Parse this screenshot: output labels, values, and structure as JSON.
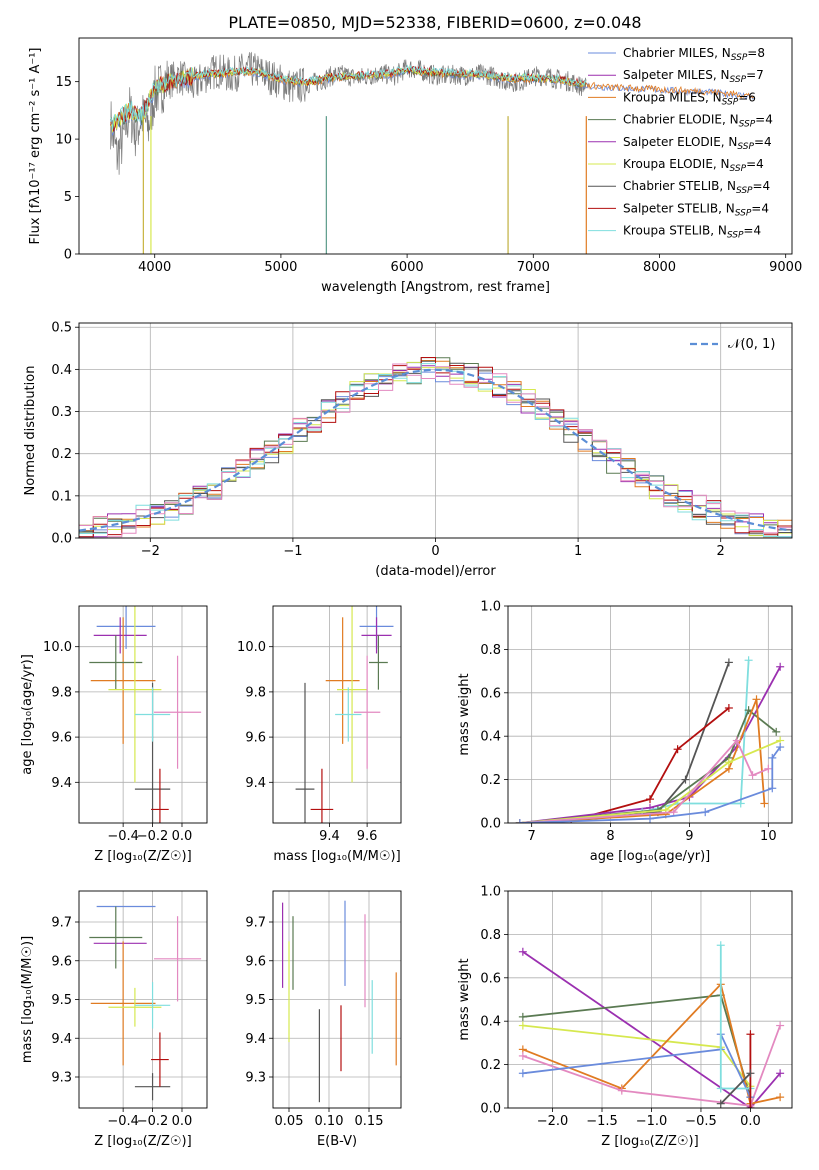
{
  "title": "PLATE=0850, MJD=52338, FIBERID=0600, z=0.048",
  "colors": [
    "#6a8bdc",
    "#9b2fae",
    "#e07b22",
    "#5a7a52",
    "#9b30b0",
    "#d6e84f",
    "#555555",
    "#b30f0f",
    "#7fdede",
    "#e389c0"
  ],
  "chart_data": [
    {
      "id": "spectrum",
      "type": "line",
      "title": "PLATE=0850, MJD=52338, FIBERID=0600, z=0.048",
      "xlabel": "wavelength [Angstrom, rest frame]",
      "ylabel": "Flux [fλ10⁻¹⁷ erg cm⁻² s⁻¹ A⁻¹]",
      "xlim": [
        3400,
        9050
      ],
      "ylim": [
        0,
        18.8
      ],
      "xticks": [
        "4000",
        "5000",
        "6000",
        "7000",
        "8000",
        "9000"
      ],
      "yticks": [
        "0",
        "5",
        "10",
        "15"
      ],
      "legend": [
        {
          "label": "Chabrier MILES, N",
          "sub": "SSP",
          "rest": "=8",
          "color": "#6a8bdc"
        },
        {
          "label": "Salpeter MILES, N",
          "sub": "SSP",
          "rest": "=7",
          "color": "#9b2fae"
        },
        {
          "label": "Kroupa MILES, N",
          "sub": "SSP",
          "rest": "=6",
          "color": "#e07b22"
        },
        {
          "label": "Chabrier ELODIE, N",
          "sub": "SSP",
          "rest": "=4",
          "color": "#5a7a52"
        },
        {
          "label": "Salpeter ELODIE, N",
          "sub": "SSP",
          "rest": "=4",
          "color": "#9b30b0"
        },
        {
          "label": "Kroupa ELODIE, N",
          "sub": "SSP",
          "rest": "=4",
          "color": "#d6e84f"
        },
        {
          "label": "Chabrier STELIB, N",
          "sub": "SSP",
          "rest": "=4",
          "color": "#555555"
        },
        {
          "label": "Salpeter STELIB, N",
          "sub": "SSP",
          "rest": "=4",
          "color": "#b30f0f"
        },
        {
          "label": "Kroupa STELIB, N",
          "sub": "SSP",
          "rest": "=4",
          "color": "#7fdede"
        }
      ],
      "data_spectrum": {
        "wavelength": [
          3650,
          3700,
          3750,
          3800,
          3850,
          3900,
          3950,
          4000,
          4100,
          4200,
          4300,
          4400,
          4500,
          4600,
          4700,
          4800,
          4900,
          5000,
          5100,
          5200,
          5300,
          5400,
          5500,
          5600,
          5700,
          5800,
          5900,
          6000,
          6100,
          6200,
          6300,
          6400,
          6500,
          6600,
          6700,
          6800,
          6900,
          7000,
          7100,
          7200,
          7300,
          7400
        ],
        "flux": [
          11.5,
          8.5,
          10.0,
          12.5,
          10.5,
          12.0,
          11.0,
          14.0,
          15.0,
          15.5,
          14.5,
          15.5,
          16.0,
          15.5,
          16.0,
          16.0,
          15.5,
          15.0,
          14.5,
          14.8,
          15.0,
          15.5,
          15.6,
          15.3,
          15.5,
          15.7,
          15.5,
          16.2,
          16.0,
          15.6,
          15.5,
          15.6,
          15.5,
          15.7,
          15.4,
          15.0,
          15.0,
          15.5,
          15.5,
          15.2,
          15.0,
          14.5
        ]
      },
      "model_flux": {
        "wavelength": [
          3650,
          3700,
          3800,
          3900,
          4000,
          4200,
          4400,
          4600,
          4800,
          5000,
          5200,
          5400,
          5600,
          5800,
          6000,
          6200,
          6400,
          6600,
          6800,
          7000,
          7200,
          7400,
          7600,
          7800,
          8000,
          8200,
          8400,
          8600,
          8750
        ],
        "flux": [
          11.0,
          11.5,
          12.5,
          12.0,
          14.5,
          15.3,
          15.6,
          15.8,
          15.9,
          15.2,
          14.9,
          15.4,
          15.5,
          15.6,
          16.0,
          15.8,
          15.7,
          15.6,
          15.3,
          15.3,
          15.2,
          14.8,
          14.6,
          14.5,
          14.4,
          14.3,
          14.2,
          14.0,
          13.8
        ]
      }
    },
    {
      "id": "residuals",
      "type": "line",
      "xlabel": "(data-model)/error",
      "ylabel": "Normed distribution",
      "xlim": [
        -2.5,
        2.5
      ],
      "ylim": [
        0,
        0.51
      ],
      "xticks": [
        "−2",
        "−1",
        "0",
        "1",
        "2"
      ],
      "yticks": [
        "0.0",
        "0.1",
        "0.2",
        "0.3",
        "0.4",
        "0.5"
      ],
      "legend": [
        {
          "label": "𝒩(0, 1)",
          "color": "#5b8ed6"
        }
      ],
      "bin_width": 0.1
    },
    {
      "id": "age-vs-Z",
      "type": "scatter",
      "xlabel": "Z [log₁₀(Z/Z☉)]",
      "ylabel": "age  [log₁₀(age/yr)]",
      "xlim": [
        -0.7,
        0.17
      ],
      "ylim": [
        9.22,
        10.18
      ],
      "xticks": [
        "−0.4",
        "−0.2",
        "0.0"
      ],
      "yticks": [
        "9.4",
        "9.6",
        "9.8",
        "10.0"
      ],
      "points": [
        {
          "x": -0.38,
          "xerr": 0.2,
          "y": 10.09,
          "yerr": 0.1,
          "color": "#6a8bdc"
        },
        {
          "x": -0.42,
          "xerr": 0.18,
          "y": 10.05,
          "yerr": 0.08,
          "color": "#9b30b0"
        },
        {
          "x": -0.4,
          "xerr": 0.22,
          "y": 9.85,
          "yerr": 0.28,
          "color": "#e07b22"
        },
        {
          "x": -0.45,
          "xerr": 0.18,
          "y": 9.93,
          "yerr": 0.12,
          "color": "#5a7a52"
        },
        {
          "x": -0.32,
          "xerr": 0.18,
          "y": 9.81,
          "yerr": 0.41,
          "color": "#d6e84f"
        },
        {
          "x": -0.2,
          "xerr": 0.12,
          "y": 9.37,
          "yerr": 0.47,
          "color": "#555555"
        },
        {
          "x": -0.15,
          "xerr": 0.06,
          "y": 9.28,
          "yerr": 0.18,
          "color": "#b30f0f"
        },
        {
          "x": -0.2,
          "xerr": 0.12,
          "y": 9.7,
          "yerr": 0.12,
          "color": "#7fdede"
        },
        {
          "x": -0.03,
          "xerr": 0.16,
          "y": 9.71,
          "yerr": 0.25,
          "color": "#e389c0"
        }
      ]
    },
    {
      "id": "age-vs-mass",
      "type": "scatter",
      "xlabel": "mass [log₁₀(M/M☉)]",
      "ylabel": "",
      "xlim": [
        9.1,
        9.78
      ],
      "ylim": [
        9.22,
        10.18
      ],
      "xticks": [
        "9.4",
        "9.6"
      ],
      "yticks": [
        "9.4",
        "9.6",
        "9.8",
        "10.0"
      ],
      "points": [
        {
          "x": 9.65,
          "xerr": 0.09,
          "y": 10.09,
          "yerr": 0.1,
          "color": "#6a8bdc"
        },
        {
          "x": 9.65,
          "xerr": 0.08,
          "y": 10.05,
          "yerr": 0.08,
          "color": "#9b30b0"
        },
        {
          "x": 9.47,
          "xerr": 0.09,
          "y": 9.85,
          "yerr": 0.28,
          "color": "#e07b22"
        },
        {
          "x": 9.66,
          "xerr": 0.05,
          "y": 9.93,
          "yerr": 0.12,
          "color": "#5a7a52"
        },
        {
          "x": 9.52,
          "xerr": 0.08,
          "y": 9.81,
          "yerr": 0.41,
          "color": "#d6e84f"
        },
        {
          "x": 9.27,
          "xerr": 0.05,
          "y": 9.37,
          "yerr": 0.47,
          "color": "#555555"
        },
        {
          "x": 9.36,
          "xerr": 0.06,
          "y": 9.28,
          "yerr": 0.18,
          "color": "#b30f0f"
        },
        {
          "x": 9.5,
          "xerr": 0.07,
          "y": 9.7,
          "yerr": 0.12,
          "color": "#7fdede"
        },
        {
          "x": 9.6,
          "xerr": 0.07,
          "y": 9.71,
          "yerr": 0.25,
          "color": "#e389c0"
        }
      ]
    },
    {
      "id": "mass-weight-vs-age",
      "type": "line",
      "xlabel": "age  [log₁₀(age/yr)]",
      "ylabel": "mass weight",
      "xlim": [
        6.7,
        10.3
      ],
      "ylim": [
        0,
        1.0
      ],
      "xticks": [
        "7",
        "8",
        "9",
        "10"
      ],
      "yticks": [
        "0.0",
        "0.2",
        "0.4",
        "0.6",
        "0.8",
        "1.0"
      ]
    },
    {
      "id": "mass-vs-Z",
      "type": "scatter",
      "xlabel": "Z [log₁₀(Z/Z☉)]",
      "ylabel": "mass [log₁₀(M/M☉)]",
      "xlim": [
        -0.7,
        0.17
      ],
      "ylim": [
        9.22,
        9.78
      ],
      "xticks": [
        "−0.4",
        "−0.2",
        "0.0"
      ],
      "yticks": [
        "9.3",
        "9.4",
        "9.5",
        "9.6",
        "9.7"
      ],
      "points": [
        {
          "x": -0.38,
          "xerr": 0.2,
          "y": 9.74,
          "yerr": 0.0,
          "color": "#6a8bdc"
        },
        {
          "x": -0.42,
          "xerr": 0.18,
          "y": 9.645,
          "yerr": 0.0,
          "color": "#9b30b0"
        },
        {
          "x": -0.4,
          "xerr": 0.22,
          "y": 9.49,
          "yerr": 0.16,
          "color": "#e07b22"
        },
        {
          "x": -0.45,
          "xerr": 0.18,
          "y": 9.66,
          "yerr": 0.08,
          "color": "#5a7a52"
        },
        {
          "x": -0.32,
          "xerr": 0.18,
          "y": 9.48,
          "yerr": 0.05,
          "color": "#d6e84f"
        },
        {
          "x": -0.2,
          "xerr": 0.12,
          "y": 9.275,
          "yerr": 0.035,
          "color": "#555555"
        },
        {
          "x": -0.15,
          "xerr": 0.06,
          "y": 9.345,
          "yerr": 0.07,
          "color": "#b30f0f"
        },
        {
          "x": -0.2,
          "xerr": 0.12,
          "y": 9.485,
          "yerr": 0.06,
          "color": "#7fdede"
        },
        {
          "x": -0.03,
          "xerr": 0.16,
          "y": 9.605,
          "yerr": 0.11,
          "color": "#e389c0"
        }
      ]
    },
    {
      "id": "mass-vs-EBV",
      "type": "scatter",
      "xlabel": "E(B-V)",
      "ylabel": "",
      "xlim": [
        0.03,
        0.19
      ],
      "ylim": [
        9.22,
        9.78
      ],
      "xticks": [
        "0.05",
        "0.10",
        "0.15"
      ],
      "yticks": [
        "9.3",
        "9.4",
        "9.5",
        "9.6",
        "9.7"
      ],
      "points": [
        {
          "x": 0.12,
          "y": 9.645,
          "yerr": 0.11,
          "color": "#6a8bdc"
        },
        {
          "x": 0.042,
          "y": 9.64,
          "yerr": 0.11,
          "color": "#9b30b0"
        },
        {
          "x": 0.184,
          "y": 9.45,
          "yerr": 0.12,
          "color": "#e07b22"
        },
        {
          "x": 0.055,
          "y": 9.62,
          "yerr": 0.095,
          "color": "#5a7a52"
        },
        {
          "x": 0.05,
          "y": 9.52,
          "yerr": 0.13,
          "color": "#d6e84f"
        },
        {
          "x": 0.088,
          "y": 9.355,
          "yerr": 0.12,
          "color": "#555555"
        },
        {
          "x": 0.115,
          "y": 9.4,
          "yerr": 0.085,
          "color": "#b30f0f"
        },
        {
          "x": 0.154,
          "y": 9.455,
          "yerr": 0.095,
          "color": "#7fdede"
        },
        {
          "x": 0.145,
          "y": 9.6,
          "yerr": 0.12,
          "color": "#e389c0"
        }
      ]
    },
    {
      "id": "mass-weight-vs-Z",
      "type": "line",
      "xlabel": "Z [log₁₀(Z/Z☉)]",
      "ylabel": "mass weight",
      "xlim": [
        -2.45,
        0.42
      ],
      "ylim": [
        0,
        1.0
      ],
      "xticks": [
        "−2.0",
        "−1.5",
        "−1.0",
        "−0.5",
        "0.0"
      ],
      "yticks": [
        "0.0",
        "0.2",
        "0.4",
        "0.6",
        "0.8",
        "1.0"
      ]
    }
  ]
}
